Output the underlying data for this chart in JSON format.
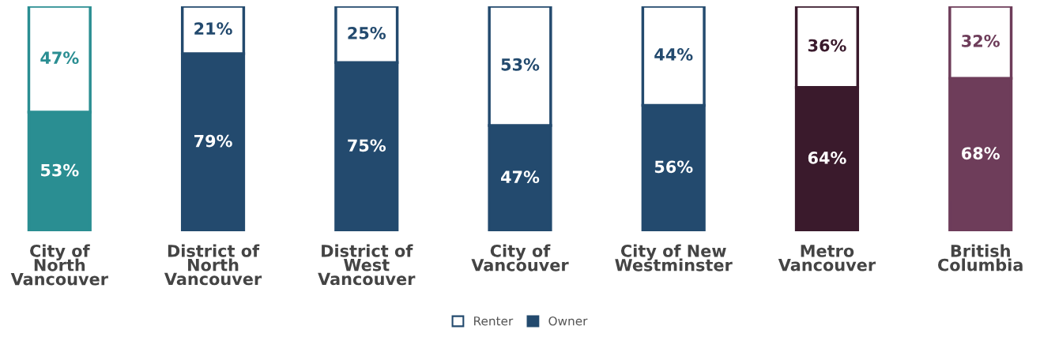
{
  "chart_data": {
    "type": "bar",
    "stacked": true,
    "legend": "bottom",
    "categories": [
      "City of\nNorth\nVancouver",
      "District of\nNorth\nVancouver",
      "District of\nWest\nVancouver",
      "City of\nVancouver",
      "City of New\nWestminster",
      "Metro\nVancouver",
      "British\nColumbia"
    ],
    "series": [
      {
        "name": "Owner",
        "color": "#234a6e",
        "colors": [
          "#2a8e92",
          "#234a6e",
          "#234a6e",
          "#234a6e",
          "#234a6e",
          "#3a1a2c",
          "#6e3d5a"
        ],
        "values": [
          53,
          79,
          75,
          47,
          56,
          64,
          68
        ],
        "value_labels": [
          "53%",
          "79%",
          "75%",
          "47%",
          "56%",
          "64%",
          "68%"
        ]
      },
      {
        "name": "Renter",
        "color": "#ffffff",
        "colors": [
          "#2a8e92",
          "#234a6e",
          "#234a6e",
          "#234a6e",
          "#234a6e",
          "#3a1a2c",
          "#6e3d5a"
        ],
        "values": [
          47,
          21,
          25,
          53,
          44,
          36,
          32
        ],
        "value_labels": [
          "47%",
          "21%",
          "25%",
          "53%",
          "44%",
          "36%",
          "32%"
        ]
      }
    ]
  }
}
